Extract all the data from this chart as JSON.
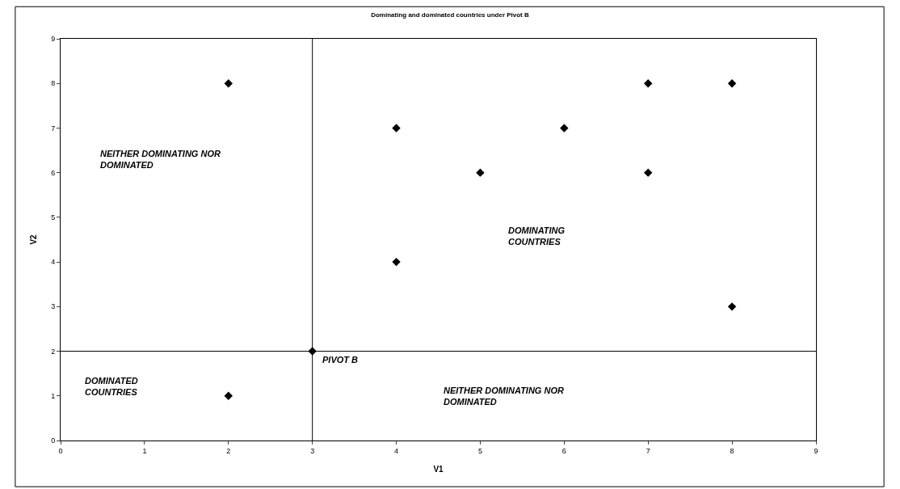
{
  "chart_data": {
    "type": "scatter",
    "title": "Dominating and dominated countries under Pivot B",
    "xlabel": "V1",
    "ylabel": "V2",
    "x": [
      2,
      4,
      5,
      6,
      7,
      8,
      7,
      4,
      8,
      2,
      3
    ],
    "series": [
      {
        "color": "#000000",
        "values": [
          8,
          7,
          6,
          7,
          8,
          8,
          6,
          4,
          3,
          1,
          2
        ]
      }
    ],
    "marker": "diamond",
    "xlim": [
      0,
      9
    ],
    "ylim": [
      0,
      9
    ],
    "xticks": [
      0,
      1,
      2,
      3,
      4,
      5,
      6,
      7,
      8,
      9
    ],
    "yticks": [
      0,
      1,
      2,
      3,
      4,
      5,
      6,
      7,
      8,
      9
    ],
    "ref_lines": [
      {
        "axis": "x",
        "value": 3,
        "color": "#000000"
      },
      {
        "axis": "y",
        "value": 2,
        "color": "#000000"
      }
    ],
    "annotations": [
      {
        "text": "PIVOT B",
        "x": 3,
        "y": 2
      },
      "NEITHER DOMINATING NOR\nDOMINATED",
      "DOMINATING\nCOUNTRIES",
      "DOMINATED\nCOUNTRIES",
      "NEITHER DOMINATING NOR\nDOMINATED"
    ]
  }
}
